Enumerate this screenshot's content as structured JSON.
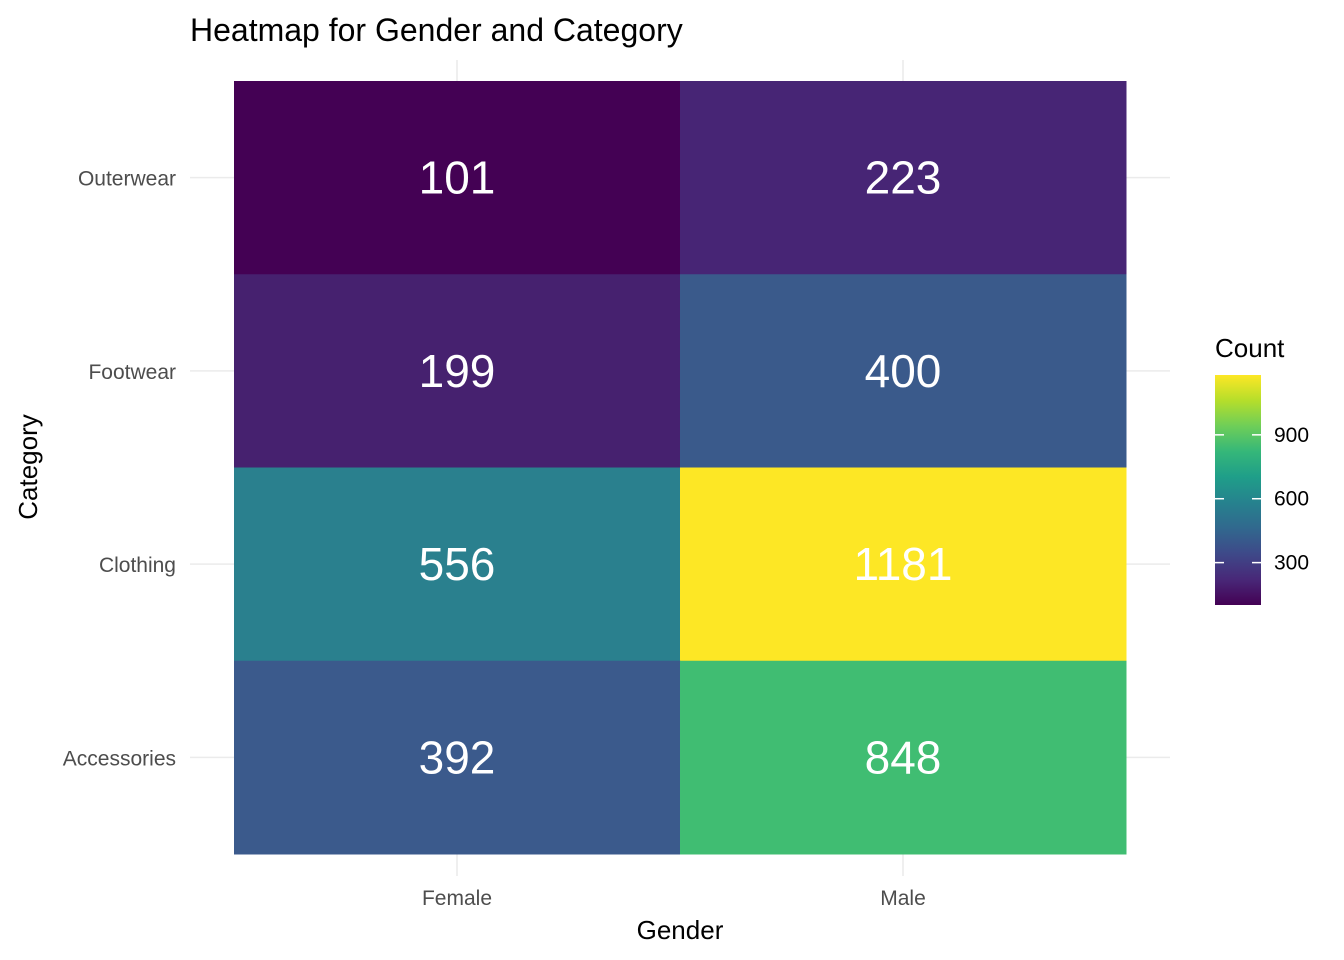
{
  "chart_data": {
    "type": "heatmap",
    "title": "Heatmap for Gender and Category",
    "xlabel": "Gender",
    "ylabel": "Category",
    "x_categories": [
      "Female",
      "Male"
    ],
    "y_categories": [
      "Accessories",
      "Clothing",
      "Footwear",
      "Outerwear"
    ],
    "values": [
      {
        "x": "Female",
        "y": "Outerwear",
        "value": 101
      },
      {
        "x": "Male",
        "y": "Outerwear",
        "value": 223
      },
      {
        "x": "Female",
        "y": "Footwear",
        "value": 199
      },
      {
        "x": "Male",
        "y": "Footwear",
        "value": 400
      },
      {
        "x": "Female",
        "y": "Clothing",
        "value": 556
      },
      {
        "x": "Male",
        "y": "Clothing",
        "value": 1181
      },
      {
        "x": "Female",
        "y": "Accessories",
        "value": 392
      },
      {
        "x": "Male",
        "y": "Accessories",
        "value": 848
      }
    ],
    "colors": {
      "Female|Outerwear": "#440154",
      "Male|Outerwear": "#472575",
      "Female|Footwear": "#46216f",
      "Male|Footwear": "#3a5a8b",
      "Female|Clothing": "#2a808e",
      "Male|Clothing": "#fde725",
      "Female|Accessories": "#3b5a8c",
      "Male|Accessories": "#40bd72"
    },
    "legend": {
      "title": "Count",
      "ticks": [
        300,
        600,
        900
      ],
      "range": [
        101,
        1181
      ],
      "colorscale": [
        "#440154",
        "#482878",
        "#3e4989",
        "#31688e",
        "#26828e",
        "#1f9e89",
        "#35b779",
        "#6ece58",
        "#b5de2b",
        "#fde725"
      ],
      "position": "right"
    },
    "grid": true
  }
}
